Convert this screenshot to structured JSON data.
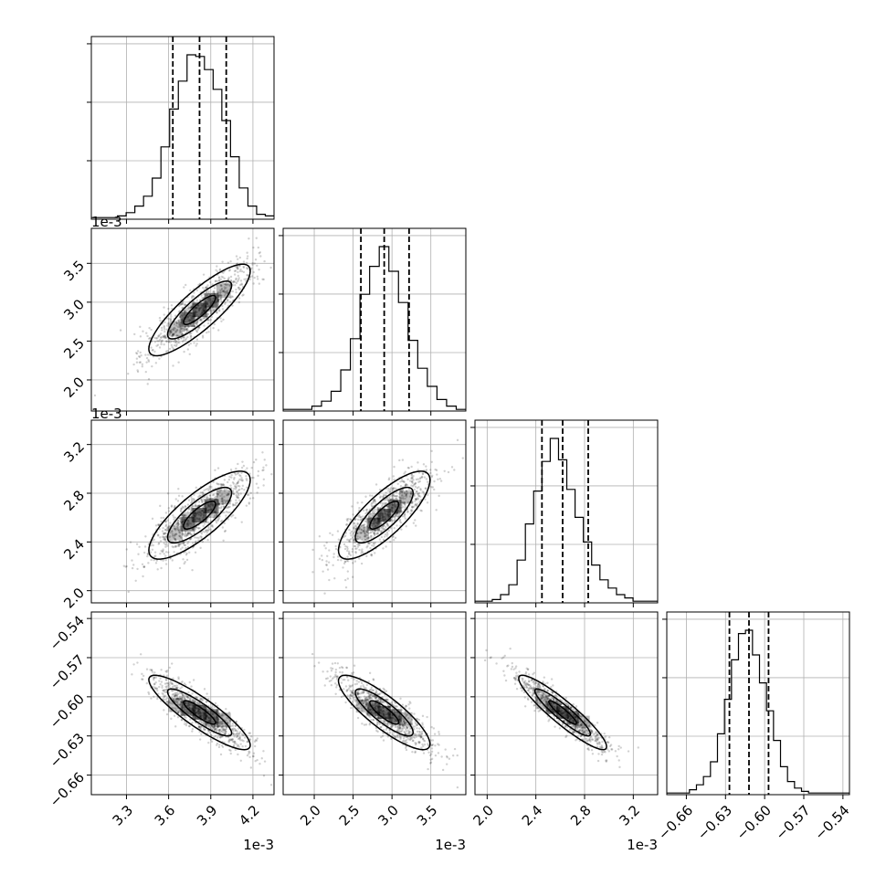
{
  "figure": {
    "type": "corner-plot",
    "title": "",
    "n_params": 4
  },
  "chart_data": {
    "type": "corner",
    "params": [
      {
        "name": "",
        "range": [
          3.05,
          4.35
        ],
        "multiplier": "1e-3",
        "ticks": [
          3.3,
          3.6,
          3.9,
          4.2
        ],
        "tick_labels": [
          "3.3",
          "3.6",
          "3.9",
          "4.2"
        ],
        "quantiles": [
          3.63,
          3.82,
          4.01
        ]
      },
      {
        "name": "",
        "range": [
          1.6,
          3.95
        ],
        "multiplier": "1e-3",
        "ticks": [
          2.0,
          2.5,
          3.0,
          3.5
        ],
        "tick_labels": [
          "2.0",
          "2.5",
          "3.0",
          "3.5"
        ],
        "quantiles": [
          2.6,
          2.9,
          3.22
        ]
      },
      {
        "name": "",
        "range": [
          1.9,
          3.4
        ],
        "multiplier": "1e-3",
        "ticks": [
          2.0,
          2.4,
          2.8,
          3.2
        ],
        "tick_labels": [
          "2.0",
          "2.4",
          "2.8",
          "3.2"
        ],
        "quantiles": [
          2.45,
          2.62,
          2.83
        ]
      },
      {
        "name": "",
        "range": [
          -0.675,
          -0.535
        ],
        "multiplier": "",
        "ticks": [
          -0.66,
          -0.63,
          -0.6,
          -0.57,
          -0.54
        ],
        "tick_labels": [
          "−0.66",
          "−0.63",
          "−0.60",
          "−0.57",
          "−0.54"
        ],
        "quantiles": [
          -0.627,
          -0.612,
          -0.597
        ]
      }
    ],
    "histograms": [
      [
        1,
        2,
        4,
        8,
        14,
        25,
        44,
        67,
        84,
        100,
        99,
        91,
        79,
        60,
        38,
        19,
        8,
        3,
        2
      ],
      [
        1,
        3,
        6,
        12,
        25,
        44,
        71,
        88,
        100,
        85,
        66,
        43,
        26,
        15,
        7,
        3,
        1
      ],
      [
        1,
        2,
        5,
        11,
        26,
        48,
        68,
        86,
        100,
        87,
        69,
        52,
        37,
        23,
        14,
        9,
        5,
        3,
        1
      ],
      [
        1,
        3,
        6,
        11,
        20,
        37,
        58,
        82,
        98,
        100,
        85,
        68,
        51,
        33,
        17,
        8,
        4,
        2,
        1
      ]
    ],
    "correlations": [
      {
        "pair": [
          0,
          1
        ],
        "rho": 0.85
      },
      {
        "pair": [
          0,
          2
        ],
        "rho": 0.8
      },
      {
        "pair": [
          1,
          2
        ],
        "rho": 0.8
      },
      {
        "pair": [
          0,
          3
        ],
        "rho": -0.88
      },
      {
        "pair": [
          1,
          3
        ],
        "rho": -0.85
      },
      {
        "pair": [
          2,
          3
        ],
        "rho": -0.92
      }
    ],
    "colors": {
      "scatter": "#000000",
      "line": "#000000",
      "grid": "#b0b0b0"
    },
    "grid": true
  }
}
